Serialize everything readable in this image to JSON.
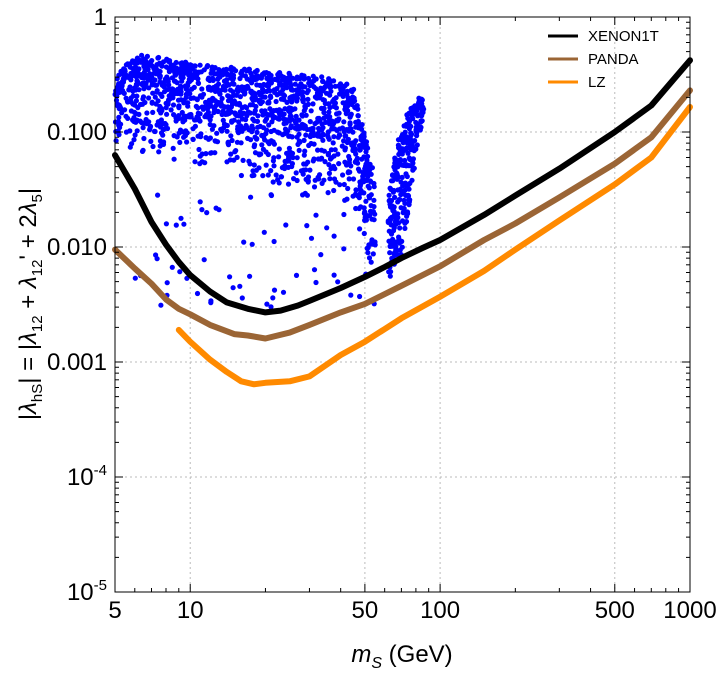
{
  "chart_data": {
    "type": "line",
    "xscale": "log",
    "yscale": "log",
    "xlim": [
      5,
      1000
    ],
    "ylim": [
      1e-05,
      1
    ],
    "xlabel_main": "m",
    "xlabel_sub": "S",
    "xlabel_unit": " (GeV)",
    "ylabel_parts": {
      "abs_open": "|",
      "lambda": "λ",
      "hs_sub": "hS",
      "abs_close_eq": "| = |",
      "sub_12": "12",
      "plus": " + ",
      "prime": "'",
      "two": "2",
      "sub_5": "5",
      "abs_end": "|"
    },
    "xticks": [
      {
        "value": 5,
        "label": "5"
      },
      {
        "value": 10,
        "label": "10"
      },
      {
        "value": 50,
        "label": "50"
      },
      {
        "value": 100,
        "label": "100"
      },
      {
        "value": 500,
        "label": "500"
      },
      {
        "value": 1000,
        "label": "1000"
      }
    ],
    "yticks": [
      {
        "value": 1e-05,
        "base": "10",
        "exp": "-5"
      },
      {
        "value": 0.0001,
        "base": "10",
        "exp": "-4"
      },
      {
        "value": 0.001,
        "label": "0.001"
      },
      {
        "value": 0.01,
        "label": "0.010"
      },
      {
        "value": 0.1,
        "label": "0.100"
      },
      {
        "value": 1,
        "label": "1"
      }
    ],
    "grid": true,
    "legend_position": "top-right",
    "series": [
      {
        "name": "XENON1T",
        "color": "#000000",
        "x": [
          5,
          6,
          7,
          8,
          9,
          10,
          12,
          14,
          17,
          20,
          23,
          27,
          30,
          35,
          40,
          50,
          60,
          70,
          85,
          100,
          150,
          200,
          300,
          500,
          700,
          1000
        ],
        "y": [
          0.063,
          0.032,
          0.0165,
          0.0105,
          0.0074,
          0.0057,
          0.0041,
          0.0033,
          0.0029,
          0.0027,
          0.0028,
          0.0031,
          0.0034,
          0.0039,
          0.0044,
          0.0055,
          0.0067,
          0.008,
          0.0098,
          0.0115,
          0.019,
          0.028,
          0.048,
          0.1,
          0.17,
          0.42
        ]
      },
      {
        "name": "PANDA",
        "color": "#9b6535",
        "x": [
          5,
          6,
          7,
          8,
          9,
          10,
          12,
          15,
          17,
          20,
          25,
          30,
          40,
          50,
          70,
          100,
          150,
          200,
          300,
          500,
          700,
          1000
        ],
        "y": [
          0.0095,
          0.0065,
          0.0048,
          0.0035,
          0.0029,
          0.0026,
          0.0021,
          0.00175,
          0.0017,
          0.0016,
          0.0018,
          0.0021,
          0.0027,
          0.0032,
          0.0046,
          0.0068,
          0.0115,
          0.016,
          0.027,
          0.053,
          0.09,
          0.23
        ]
      },
      {
        "name": "LZ",
        "color": "#ff8a00",
        "x": [
          9,
          10,
          12,
          14,
          16,
          18,
          20,
          25,
          30,
          40,
          50,
          70,
          100,
          150,
          200,
          300,
          500,
          700,
          1000
        ],
        "y": [
          0.0019,
          0.0015,
          0.00105,
          0.00082,
          0.00068,
          0.00064,
          0.00066,
          0.00068,
          0.00075,
          0.00115,
          0.0015,
          0.0024,
          0.0037,
          0.0062,
          0.0095,
          0.017,
          0.035,
          0.06,
          0.165
        ]
      }
    ],
    "scatter": {
      "name": "model points",
      "color": "#0000ff",
      "regions": [
        {
          "x_range": [
            5,
            55
          ],
          "y_upper": [
            [
              5.5,
              0.38
            ],
            [
              6.2,
              0.48
            ],
            [
              10,
              0.4
            ],
            [
              20,
              0.34
            ],
            [
              35,
              0.3
            ],
            [
              45,
              0.25
            ],
            [
              55,
              0.04
            ]
          ],
          "y_lower": [
            [
              5.5,
              0.07
            ],
            [
              10,
              0.05
            ],
            [
              20,
              0.035
            ],
            [
              35,
              0.025
            ],
            [
              45,
              0.02
            ],
            [
              55,
              0.005
            ]
          ]
        },
        {
          "x_range": [
            62,
            86
          ],
          "y_upper": [
            [
              62,
              0.03
            ],
            [
              70,
              0.12
            ],
            [
              80,
              0.19
            ],
            [
              86,
              0.21
            ]
          ],
          "y_lower": [
            [
              62,
              0.005
            ],
            [
              70,
              0.008
            ],
            [
              80,
              0.06
            ],
            [
              86,
              0.15
            ]
          ]
        }
      ]
    }
  }
}
